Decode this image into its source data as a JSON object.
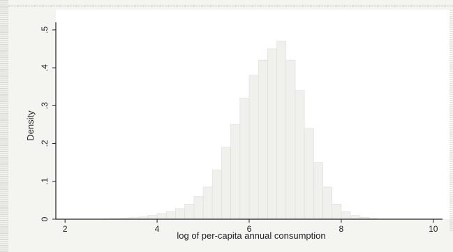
{
  "colors": {
    "axis": "#222222",
    "bar_fill": "#f0f0ed",
    "bar_stroke": "#dcdcd8",
    "page": "#f4f4f1",
    "plot_bg": "#ffffff",
    "speckle": "#d8d8d4"
  },
  "chart_data": {
    "type": "bar",
    "title": "",
    "xlabel": "log of per-capita annual consumption",
    "ylabel": "Density",
    "xlim": [
      1.8,
      10.2
    ],
    "ylim": [
      0,
      0.52
    ],
    "xticks": [
      2,
      4,
      6,
      8,
      10
    ],
    "xtick_labels": [
      "2",
      "4",
      "6",
      "8",
      "10"
    ],
    "yticks": [
      0,
      0.1,
      0.2,
      0.3,
      0.4,
      0.5
    ],
    "ytick_labels": [
      "0",
      ".1",
      ".2",
      ".3",
      ".4",
      ".5"
    ],
    "grid": false,
    "legend": "none",
    "bins": [
      {
        "x0": 2.8,
        "x1": 3.0,
        "density": 0.001
      },
      {
        "x0": 3.0,
        "x1": 3.2,
        "density": 0.002
      },
      {
        "x0": 3.2,
        "x1": 3.4,
        "density": 0.003
      },
      {
        "x0": 3.4,
        "x1": 3.6,
        "density": 0.004
      },
      {
        "x0": 3.6,
        "x1": 3.8,
        "density": 0.006
      },
      {
        "x0": 3.8,
        "x1": 4.0,
        "density": 0.01
      },
      {
        "x0": 4.0,
        "x1": 4.2,
        "density": 0.015
      },
      {
        "x0": 4.2,
        "x1": 4.4,
        "density": 0.02
      },
      {
        "x0": 4.4,
        "x1": 4.6,
        "density": 0.028
      },
      {
        "x0": 4.6,
        "x1": 4.8,
        "density": 0.04
      },
      {
        "x0": 4.8,
        "x1": 5.0,
        "density": 0.06
      },
      {
        "x0": 5.0,
        "x1": 5.2,
        "density": 0.085
      },
      {
        "x0": 5.2,
        "x1": 5.4,
        "density": 0.13
      },
      {
        "x0": 5.4,
        "x1": 5.6,
        "density": 0.19
      },
      {
        "x0": 5.6,
        "x1": 5.8,
        "density": 0.25
      },
      {
        "x0": 5.8,
        "x1": 6.0,
        "density": 0.32
      },
      {
        "x0": 6.0,
        "x1": 6.2,
        "density": 0.38
      },
      {
        "x0": 6.2,
        "x1": 6.4,
        "density": 0.42
      },
      {
        "x0": 6.4,
        "x1": 6.6,
        "density": 0.45
      },
      {
        "x0": 6.6,
        "x1": 6.8,
        "density": 0.47
      },
      {
        "x0": 6.8,
        "x1": 7.0,
        "density": 0.42
      },
      {
        "x0": 7.0,
        "x1": 7.2,
        "density": 0.34
      },
      {
        "x0": 7.2,
        "x1": 7.4,
        "density": 0.24
      },
      {
        "x0": 7.4,
        "x1": 7.6,
        "density": 0.15
      },
      {
        "x0": 7.6,
        "x1": 7.8,
        "density": 0.085
      },
      {
        "x0": 7.8,
        "x1": 8.0,
        "density": 0.04
      },
      {
        "x0": 8.0,
        "x1": 8.2,
        "density": 0.02
      },
      {
        "x0": 8.2,
        "x1": 8.4,
        "density": 0.01
      },
      {
        "x0": 8.4,
        "x1": 8.6,
        "density": 0.005
      },
      {
        "x0": 8.6,
        "x1": 8.8,
        "density": 0.002
      }
    ]
  }
}
